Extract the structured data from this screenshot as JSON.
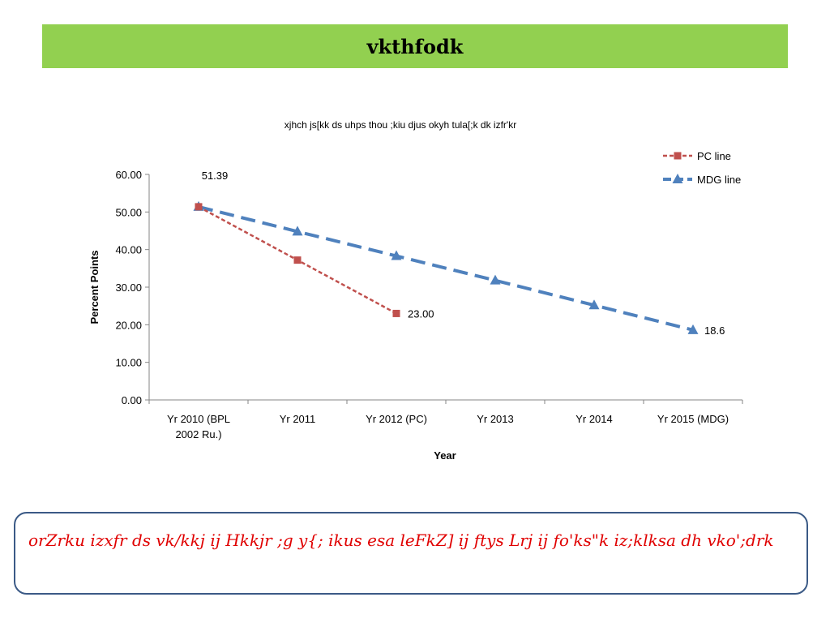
{
  "header": {
    "title": "vkthfodk"
  },
  "chart_data": {
    "type": "line",
    "title": "xjhch js[kk ds uhps thou ;kiu djus okyh tula[;k dk izfr'kr",
    "xlabel": "Year",
    "ylabel": "Percent Points",
    "categories": [
      "Yr 2010 (BPL 2002  Ru.)",
      "Yr 2011",
      "Yr 2012 (PC)",
      "Yr 2013",
      "Yr 2014",
      "Yr 2015 (MDG)"
    ],
    "category_lines": [
      [
        "Yr 2010 (BPL",
        "2002  Ru.)"
      ],
      [
        "Yr 2011"
      ],
      [
        "Yr 2012 (PC)"
      ],
      [
        "Yr 2013"
      ],
      [
        "Yr 2014"
      ],
      [
        "Yr 2015 (MDG)"
      ]
    ],
    "ylim": [
      0,
      60
    ],
    "yticks": [
      "0.00",
      "10.00",
      "20.00",
      "30.00",
      "40.00",
      "50.00",
      "60.00"
    ],
    "series": [
      {
        "name": "PC line",
        "values": [
          51.39,
          37.2,
          23.0,
          null,
          null,
          null
        ],
        "color": "#c0504d",
        "marker": "square",
        "dash": "short"
      },
      {
        "name": "MDG line",
        "values": [
          51.39,
          44.8,
          38.3,
          31.8,
          25.2,
          18.6
        ],
        "color": "#4f81bd",
        "marker": "triangle",
        "dash": "long"
      }
    ],
    "data_labels": [
      {
        "text": "51.39",
        "series": 1,
        "index": 0
      },
      {
        "text": "23.00",
        "series": 0,
        "index": 2
      },
      {
        "text": "18.6",
        "series": 1,
        "index": 5
      }
    ],
    "legend_position": "top-right",
    "grid": false
  },
  "note": {
    "text": "orZrku izxfr ds vk/kkj ij Hkkjr ;g y{; ikus esa leFkZ] ij ftys Lrj ij fo'ks\"k iz;klksa dh vko';drk"
  }
}
